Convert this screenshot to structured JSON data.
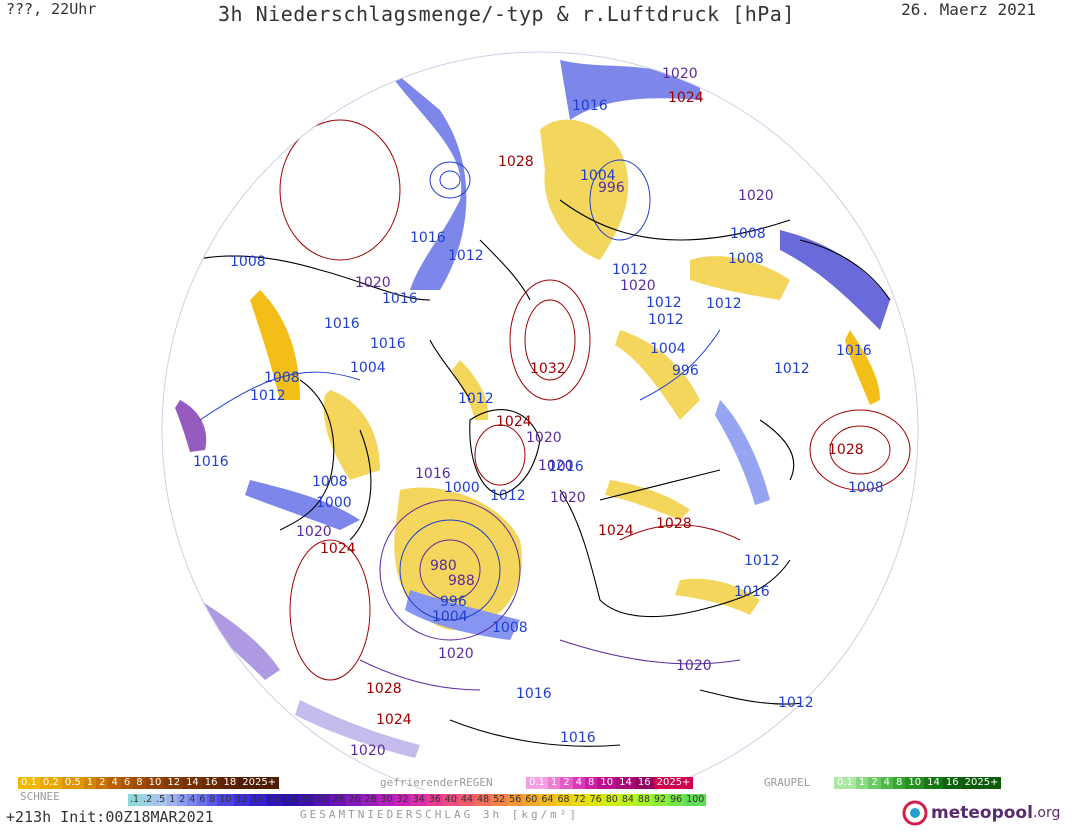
{
  "header": {
    "left": "???, 22Uhr",
    "title": "3h Niederschlagsmenge/-typ & r.Luftdruck [hPa]",
    "date": "26. Maerz 2021"
  },
  "isobars": [
    {
      "t": "1020",
      "c": "#5b2aa0"
    },
    {
      "t": "1024",
      "c": "#a00000"
    },
    {
      "t": "1016",
      "c": "#1f3fd0"
    },
    {
      "t": "1028",
      "c": "#a00000"
    },
    {
      "t": "1004",
      "c": "#1f3fd0"
    },
    {
      "t": "996",
      "c": "#5b2aa0"
    },
    {
      "t": "1020",
      "c": "#5b2aa0"
    },
    {
      "t": "1016",
      "c": "#1f3fd0"
    },
    {
      "t": "1008",
      "c": "#1f3fd0"
    },
    {
      "t": "1008",
      "c": "#1f3fd0"
    },
    {
      "t": "1012",
      "c": "#1f3fd0"
    },
    {
      "t": "1008",
      "c": "#1f3fd0"
    },
    {
      "t": "1020",
      "c": "#5b2aa0"
    },
    {
      "t": "1016",
      "c": "#1f3fd0"
    },
    {
      "t": "1012",
      "c": "#1f3fd0"
    },
    {
      "t": "1020",
      "c": "#5b2aa0"
    },
    {
      "t": "1012",
      "c": "#1f3fd0"
    },
    {
      "t": "1012",
      "c": "#1f3fd0"
    },
    {
      "t": "1016",
      "c": "#1f3fd0"
    },
    {
      "t": "1012",
      "c": "#1f3fd0"
    },
    {
      "t": "1008",
      "c": "#1f3fd0"
    },
    {
      "t": "1016",
      "c": "#1f3fd0"
    },
    {
      "t": "1004",
      "c": "#1f3fd0"
    },
    {
      "t": "1016",
      "c": "#1f3fd0"
    },
    {
      "t": "1012",
      "c": "#1f3fd0"
    },
    {
      "t": "1032",
      "c": "#a00000"
    },
    {
      "t": "996",
      "c": "#1f3fd0"
    },
    {
      "t": "1012",
      "c": "#1f3fd0"
    },
    {
      "t": "1004",
      "c": "#1f3fd0"
    },
    {
      "t": "1012",
      "c": "#1f3fd0"
    },
    {
      "t": "1020",
      "c": "#5b2aa0"
    },
    {
      "t": "1024",
      "c": "#a00000"
    },
    {
      "t": "1020",
      "c": "#5b2aa0"
    },
    {
      "t": "1016",
      "c": "#1f3fd0"
    },
    {
      "t": "1016",
      "c": "#5b2aa0"
    },
    {
      "t": "1016",
      "c": "#1f3fd0"
    },
    {
      "t": "1028",
      "c": "#a00000"
    },
    {
      "t": "1000",
      "c": "#1f3fd0"
    },
    {
      "t": "1012",
      "c": "#1f3fd0"
    },
    {
      "t": "1020",
      "c": "#5b2aa0"
    },
    {
      "t": "1008",
      "c": "#1f3fd0"
    },
    {
      "t": "1000",
      "c": "#1f3fd0"
    },
    {
      "t": "1008",
      "c": "#1f3fd0"
    },
    {
      "t": "1020",
      "c": "#5b2aa0"
    },
    {
      "t": "1024",
      "c": "#a00000"
    },
    {
      "t": "1028",
      "c": "#a00000"
    },
    {
      "t": "1024",
      "c": "#a00000"
    },
    {
      "t": "1012",
      "c": "#1f3fd0"
    },
    {
      "t": "980",
      "c": "#5b2aa0"
    },
    {
      "t": "988",
      "c": "#5b2aa0"
    },
    {
      "t": "996",
      "c": "#1f3fd0"
    },
    {
      "t": "1016",
      "c": "#1f3fd0"
    },
    {
      "t": "1004",
      "c": "#1f3fd0"
    },
    {
      "t": "1008",
      "c": "#1f3fd0"
    },
    {
      "t": "1020",
      "c": "#5b2aa0"
    },
    {
      "t": "1020",
      "c": "#5b2aa0"
    },
    {
      "t": "1028",
      "c": "#a00000"
    },
    {
      "t": "1016",
      "c": "#1f3fd0"
    },
    {
      "t": "1024",
      "c": "#a00000"
    },
    {
      "t": "1012",
      "c": "#1f3fd0"
    },
    {
      "t": "1016",
      "c": "#1f3fd0"
    },
    {
      "t": "1020",
      "c": "#5b2aa0"
    }
  ],
  "legend": {
    "snow_label": "SCHNEE",
    "snow_scale": [
      "0.1",
      "0.2",
      "0.5",
      "1",
      "2",
      "4",
      "6",
      "8",
      "10",
      "12",
      "14",
      "16",
      "18",
      "2025+"
    ],
    "freezing_rain_label": "gefrierenderREGEN",
    "freezing_rain_scale": [
      "0.1",
      "1",
      "2",
      "4",
      "8",
      "10",
      "14",
      "16",
      "2025+"
    ],
    "graupel_label": "GRAUPEL",
    "graupel_scale": [
      "0.1",
      "1",
      "2",
      "4",
      "8",
      "10",
      "14",
      "16",
      "2025+"
    ],
    "total_scale": [
      ".1",
      ".2",
      ".5",
      "1",
      "2",
      "4",
      "6",
      "8",
      "10",
      "12",
      "14",
      "16",
      "18",
      "20",
      "22",
      "24",
      "26",
      "28",
      "30",
      "32",
      "34",
      "36",
      "40",
      "44",
      "48",
      "52",
      "56",
      "60",
      "64",
      "68",
      "72",
      "76",
      "80",
      "84",
      "88",
      "92",
      "96",
      "100"
    ],
    "total_label": "GESAMTNIEDERSCHLAG 3h [kg/m²]"
  },
  "colors": {
    "snow": [
      "#f2b800",
      "#e9a800",
      "#df9600",
      "#d48400",
      "#c87000",
      "#bb6000",
      "#ad5400",
      "#9f4a00",
      "#914200",
      "#833a00",
      "#753200",
      "#682a00",
      "#5b2300",
      "#4e1c00"
    ],
    "freezing_rain": [
      "#f5a0e0",
      "#ee7ed4",
      "#e65cc6",
      "#dc3ab6",
      "#cf1ea4",
      "#bd0e8e",
      "#a80878",
      "#920662",
      "#d0004e"
    ],
    "graupel": [
      "#a8e8a0",
      "#8ad882",
      "#6cc864",
      "#50b848",
      "#38a432",
      "#268e22",
      "#187816",
      "#0e620c",
      "#0c5a0a"
    ],
    "total": [
      "#8fd8d8",
      "#9dd0e4",
      "#a6c4ee",
      "#9eb0f2",
      "#8c9cf4",
      "#7a86f2",
      "#6a70ee",
      "#5b5ae8",
      "#4c44e0",
      "#3e30d6",
      "#3420cc",
      "#2c14c0",
      "#2a0eb0",
      "#3a10b0",
      "#5212b4",
      "#6c14b8",
      "#8418bc",
      "#9c1cbc",
      "#b41ebc",
      "#cc22b8",
      "#dc2ea8",
      "#e63c94",
      "#ec4c80",
      "#f05c6c",
      "#f26e5a",
      "#f28248",
      "#f29638",
      "#f2a82a",
      "#f2ba1e",
      "#f0ca16",
      "#eada12",
      "#e0e610",
      "#d0ee14",
      "#bcf21c",
      "#a6f228",
      "#8eee36",
      "#76e646",
      "#62dc56"
    ]
  },
  "footer": {
    "run": "+213h Init:00Z18MAR2021",
    "brand": "meteopool",
    "brand_suffix": ".org"
  }
}
